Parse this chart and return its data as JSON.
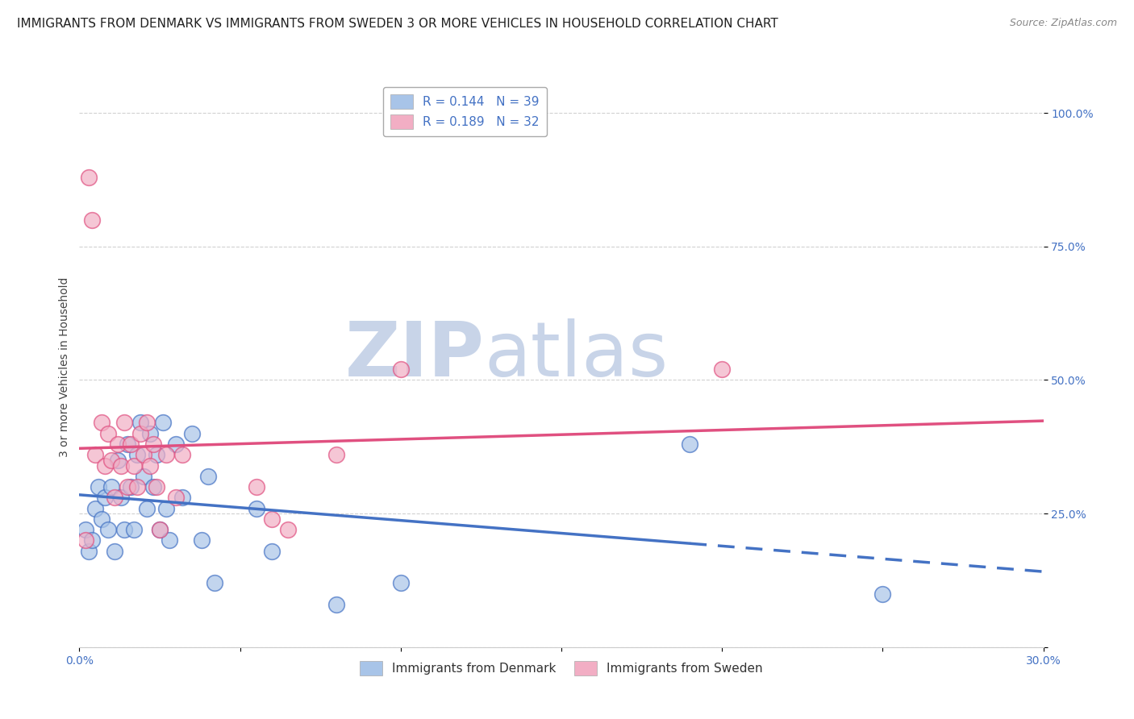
{
  "title": "IMMIGRANTS FROM DENMARK VS IMMIGRANTS FROM SWEDEN 3 OR MORE VEHICLES IN HOUSEHOLD CORRELATION CHART",
  "source": "Source: ZipAtlas.com",
  "ylabel": "3 or more Vehicles in Household",
  "xlim": [
    0.0,
    0.3
  ],
  "ylim": [
    0.0,
    1.05
  ],
  "ytick_labels": [
    "",
    "25.0%",
    "50.0%",
    "75.0%",
    "100.0%"
  ],
  "ytick_values": [
    0.0,
    0.25,
    0.5,
    0.75,
    1.0
  ],
  "xtick_labels": [
    "0.0%",
    "",
    "",
    "",
    "",
    "",
    "30.0%"
  ],
  "xtick_values": [
    0.0,
    0.05,
    0.1,
    0.15,
    0.2,
    0.25,
    0.3
  ],
  "legend_labels": [
    "Immigrants from Denmark",
    "Immigrants from Sweden"
  ],
  "denmark_R": "0.144",
  "denmark_N": "39",
  "sweden_R": "0.189",
  "sweden_N": "32",
  "denmark_color": "#a8c4e8",
  "sweden_color": "#f2aec4",
  "denmark_line_color": "#4472c4",
  "sweden_line_color": "#e05080",
  "denmark_scatter": [
    [
      0.002,
      0.22
    ],
    [
      0.003,
      0.18
    ],
    [
      0.004,
      0.2
    ],
    [
      0.005,
      0.26
    ],
    [
      0.006,
      0.3
    ],
    [
      0.007,
      0.24
    ],
    [
      0.008,
      0.28
    ],
    [
      0.009,
      0.22
    ],
    [
      0.01,
      0.3
    ],
    [
      0.011,
      0.18
    ],
    [
      0.012,
      0.35
    ],
    [
      0.013,
      0.28
    ],
    [
      0.014,
      0.22
    ],
    [
      0.015,
      0.38
    ],
    [
      0.016,
      0.3
    ],
    [
      0.017,
      0.22
    ],
    [
      0.018,
      0.36
    ],
    [
      0.019,
      0.42
    ],
    [
      0.02,
      0.32
    ],
    [
      0.021,
      0.26
    ],
    [
      0.022,
      0.4
    ],
    [
      0.023,
      0.3
    ],
    [
      0.024,
      0.36
    ],
    [
      0.025,
      0.22
    ],
    [
      0.026,
      0.42
    ],
    [
      0.027,
      0.26
    ],
    [
      0.028,
      0.2
    ],
    [
      0.03,
      0.38
    ],
    [
      0.032,
      0.28
    ],
    [
      0.035,
      0.4
    ],
    [
      0.038,
      0.2
    ],
    [
      0.04,
      0.32
    ],
    [
      0.042,
      0.12
    ],
    [
      0.055,
      0.26
    ],
    [
      0.06,
      0.18
    ],
    [
      0.08,
      0.08
    ],
    [
      0.1,
      0.12
    ],
    [
      0.19,
      0.38
    ],
    [
      0.25,
      0.1
    ]
  ],
  "sweden_scatter": [
    [
      0.002,
      0.2
    ],
    [
      0.003,
      0.88
    ],
    [
      0.004,
      0.8
    ],
    [
      0.005,
      0.36
    ],
    [
      0.007,
      0.42
    ],
    [
      0.008,
      0.34
    ],
    [
      0.009,
      0.4
    ],
    [
      0.01,
      0.35
    ],
    [
      0.011,
      0.28
    ],
    [
      0.012,
      0.38
    ],
    [
      0.013,
      0.34
    ],
    [
      0.014,
      0.42
    ],
    [
      0.015,
      0.3
    ],
    [
      0.016,
      0.38
    ],
    [
      0.017,
      0.34
    ],
    [
      0.018,
      0.3
    ],
    [
      0.019,
      0.4
    ],
    [
      0.02,
      0.36
    ],
    [
      0.021,
      0.42
    ],
    [
      0.022,
      0.34
    ],
    [
      0.023,
      0.38
    ],
    [
      0.024,
      0.3
    ],
    [
      0.025,
      0.22
    ],
    [
      0.027,
      0.36
    ],
    [
      0.03,
      0.28
    ],
    [
      0.032,
      0.36
    ],
    [
      0.055,
      0.3
    ],
    [
      0.06,
      0.24
    ],
    [
      0.065,
      0.22
    ],
    [
      0.08,
      0.36
    ],
    [
      0.1,
      0.52
    ],
    [
      0.2,
      0.52
    ]
  ],
  "background_color": "#ffffff",
  "grid_color": "#cccccc",
  "title_fontsize": 11,
  "axis_label_fontsize": 10,
  "tick_fontsize": 10,
  "legend_fontsize": 11,
  "watermark_zip": "ZIP",
  "watermark_atlas": "atlas",
  "watermark_color_zip": "#c8d4e8",
  "watermark_color_atlas": "#c8d4e8",
  "watermark_fontsize": 68
}
